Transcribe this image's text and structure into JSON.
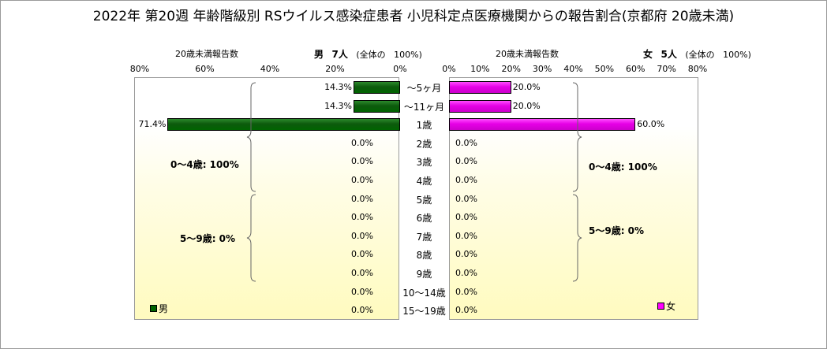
{
  "title": "2022年 第20週 年齢階級別 RSウイルス感染症患者 小児科定点医療機関からの報告割合(京都府 20歳未満)",
  "left_header": {
    "caption": "20歳未満報告数",
    "sex": "男",
    "count": "7人",
    "note": "(全体の",
    "pct": "100%)"
  },
  "right_header": {
    "caption": "20歳未満報告数",
    "sex": "女",
    "count": "5人",
    "note": "(全体の",
    "pct": "100%)"
  },
  "brackets": {
    "male_0_4": "0～4歳: 100%",
    "male_5_9": "5～9歳: 0%",
    "female_0_4": "0～4歳: 100%",
    "female_5_9": "5～9歳: 0%"
  },
  "legend": {
    "male": "男",
    "female": "女"
  },
  "colors": {
    "male": "#006400",
    "female": "#ff00ff"
  },
  "chart_data": {
    "type": "bar",
    "orientation": "horizontal-population-pyramid",
    "categories": [
      "～5ヶ月",
      "～11ヶ月",
      "1歳",
      "2歳",
      "3歳",
      "4歳",
      "5歳",
      "6歳",
      "7歳",
      "8歳",
      "9歳",
      "10～14歳",
      "15～19歳"
    ],
    "male_ticks": [
      "80%",
      "60%",
      "40%",
      "20%",
      "0%"
    ],
    "female_ticks": [
      "0%",
      "10%",
      "20%",
      "30%",
      "40%",
      "50%",
      "60%",
      "70%",
      "80%"
    ],
    "series": [
      {
        "name": "男",
        "values": [
          14.3,
          14.3,
          71.4,
          0,
          0,
          0,
          0,
          0,
          0,
          0,
          0,
          0,
          0
        ],
        "labels": [
          "14.3%",
          "14.3%",
          "71.4%",
          "0.0%",
          "0.0%",
          "0.0%",
          "0.0%",
          "0.0%",
          "0.0%",
          "0.0%",
          "0.0%",
          "0.0%",
          "0.0%"
        ]
      },
      {
        "name": "女",
        "values": [
          20.0,
          20.0,
          60.0,
          0,
          0,
          0,
          0,
          0,
          0,
          0,
          0,
          0,
          0
        ],
        "labels": [
          "20.0%",
          "20.0%",
          "60.0%",
          "0.0%",
          "0.0%",
          "0.0%",
          "0.0%",
          "0.0%",
          "0.0%",
          "0.0%",
          "0.0%",
          "0.0%",
          "0.0%"
        ]
      }
    ],
    "xlim": [
      0,
      80
    ],
    "grid": false
  }
}
